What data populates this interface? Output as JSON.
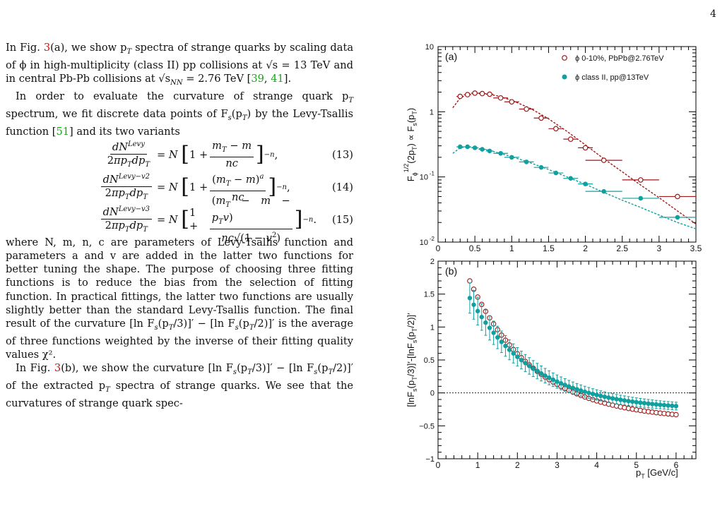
{
  "page_number": "4",
  "text": {
    "p1_a": "In Fig. ",
    "p1_figref": "3",
    "p1_b": "(a), we show p",
    "p1_c": " spectra of strange quarks by scaling data of ϕ in high-multiplicity (class II) pp collisions at √s = 13 TeV and in central Pb-Pb collisions at √s",
    "p1_d": " = 2.76 TeV [",
    "p1_ref1": "39",
    "p1_ref2": "41",
    "p1_e": "].",
    "p2_a": "In order to evaluate the curvature of strange quark p",
    "p2_b": " spectrum, we fit discrete data points of F",
    "p2_c": "(p",
    "p2_d": ") by the Levy-Tsallis function [",
    "p2_ref": "51",
    "p2_e": "] and its two variants",
    "eq13_num": "(13)",
    "eq14_num": "(14)",
    "eq15_num": "(15)",
    "p3": "where N, m, n, c are parameters of Levy-Tsallis function and parameters a and v are added in the latter two functions for better tuning the shape. The purpose of choosing three fitting functions is to reduce the bias from the selection of fitting function. In practical fittings, the latter two functions are usually slightly better than the standard Levy-Tsallis function. The final result of the curvature [ln F",
    "p3_b": "(p",
    "p3_c": "/3)]′ − [ln F",
    "p3_d": "(p",
    "p3_e": "/2)]′ is the average of three functions weighted by the inverse of their fitting quality values χ².",
    "p4_a": "In Fig. ",
    "p4_figref": "3",
    "p4_b": "(b), we show the curvature [ln F",
    "p4_c": "(p",
    "p4_d": "/3)]′ − [ln F",
    "p4_e": "(p",
    "p4_f": "/2)]′ of the extracted p",
    "p4_g": " spectra of strange quarks. We see that the curvatures of strange quark spec-"
  },
  "chart_data": [
    {
      "type": "scatter",
      "panel_label": "(a)",
      "ylabel": "F_ϕ^{1/2}(2p_T) ∝ F_s(p_T)",
      "xlim": [
        0,
        3.5
      ],
      "ylim": [
        0.01,
        10
      ],
      "yscale": "log",
      "xticks": [
        "0",
        "0.5",
        "1",
        "1.5",
        "2",
        "2.5",
        "3",
        "3.5"
      ],
      "yticks": [
        "10⁻²",
        "10⁻¹",
        "1",
        "10"
      ],
      "legend_position": "top-right",
      "series": [
        {
          "name": "ϕ   0-10%, PbPb@2.76TeV",
          "marker": "open-circle",
          "color": "#a01818",
          "x": [
            0.3,
            0.4,
            0.5,
            0.6,
            0.7,
            0.85,
            1.0,
            1.2,
            1.4,
            1.6,
            1.8,
            2.0,
            2.25,
            2.75,
            3.25
          ],
          "y": [
            1.72,
            1.83,
            1.93,
            1.9,
            1.86,
            1.63,
            1.42,
            1.1,
            0.8,
            0.55,
            0.38,
            0.28,
            0.18,
            0.09,
            0.05
          ],
          "xerr": [
            0.05,
            0.05,
            0.05,
            0.05,
            0.05,
            0.1,
            0.1,
            0.1,
            0.1,
            0.1,
            0.1,
            0.1,
            0.25,
            0.25,
            0.25
          ],
          "fit_x": [
            0.2,
            0.3,
            0.4,
            0.5,
            0.6,
            0.8,
            1.0,
            1.25,
            1.5,
            1.75,
            2.0,
            2.25,
            2.5,
            2.75,
            3.0,
            3.25,
            3.5
          ],
          "fit_y": [
            1.15,
            1.62,
            1.86,
            1.94,
            1.92,
            1.76,
            1.5,
            1.13,
            0.78,
            0.5,
            0.31,
            0.19,
            0.12,
            0.075,
            0.048,
            0.03,
            0.019
          ]
        },
        {
          "name": "ϕ   class II, pp@13TeV",
          "marker": "filled-circle",
          "color": "#11a0a0",
          "x": [
            0.3,
            0.4,
            0.5,
            0.6,
            0.7,
            0.85,
            1.0,
            1.2,
            1.4,
            1.6,
            1.8,
            2.0,
            2.25,
            2.75,
            3.25
          ],
          "y": [
            0.29,
            0.29,
            0.28,
            0.265,
            0.25,
            0.23,
            0.2,
            0.17,
            0.14,
            0.115,
            0.095,
            0.078,
            0.06,
            0.047,
            0.024
          ],
          "xerr": [
            0.05,
            0.05,
            0.05,
            0.05,
            0.05,
            0.1,
            0.1,
            0.1,
            0.1,
            0.1,
            0.1,
            0.1,
            0.25,
            0.25,
            0.25
          ],
          "fit_x": [
            0.2,
            0.3,
            0.4,
            0.5,
            0.7,
            1.0,
            1.25,
            1.5,
            1.75,
            2.0,
            2.25,
            2.5,
            2.75,
            3.0,
            3.25,
            3.5
          ],
          "fit_y": [
            0.23,
            0.28,
            0.29,
            0.28,
            0.255,
            0.205,
            0.165,
            0.13,
            0.1,
            0.077,
            0.058,
            0.044,
            0.034,
            0.026,
            0.02,
            0.016
          ]
        }
      ]
    },
    {
      "type": "scatter",
      "panel_label": "(b)",
      "ylabel": "[lnF_s(p_T/3)]′-[lnF_s(p_T/2)]′",
      "xlabel": "p_T [GeV/c]",
      "xlim": [
        0,
        6.5
      ],
      "ylim": [
        -1,
        2
      ],
      "xticks": [
        "0",
        "1",
        "2",
        "3",
        "4",
        "5",
        "6"
      ],
      "yticks": [
        "−1",
        "−0.5",
        "0",
        "0.5",
        "1",
        "1.5",
        "2"
      ],
      "reference_line": 0,
      "series": [
        {
          "name": "ϕ   0-10%, PbPb@2.76TeV",
          "marker": "open-circle",
          "color": "#a01818",
          "x_start": 0.8,
          "x_end": 6.0,
          "x_step": 0.1,
          "y_at_start": 1.7,
          "y_at_end": -0.33
        },
        {
          "name": "ϕ   class II, pp@13TeV",
          "marker": "filled-circle",
          "color": "#11a0a0",
          "x_start": 0.8,
          "x_end": 6.0,
          "x_step": 0.1,
          "y_at_start": 1.44,
          "y_at_end": -0.2,
          "yerr_at_start": 0.23,
          "yerr_at_end": 0.05
        }
      ]
    }
  ]
}
